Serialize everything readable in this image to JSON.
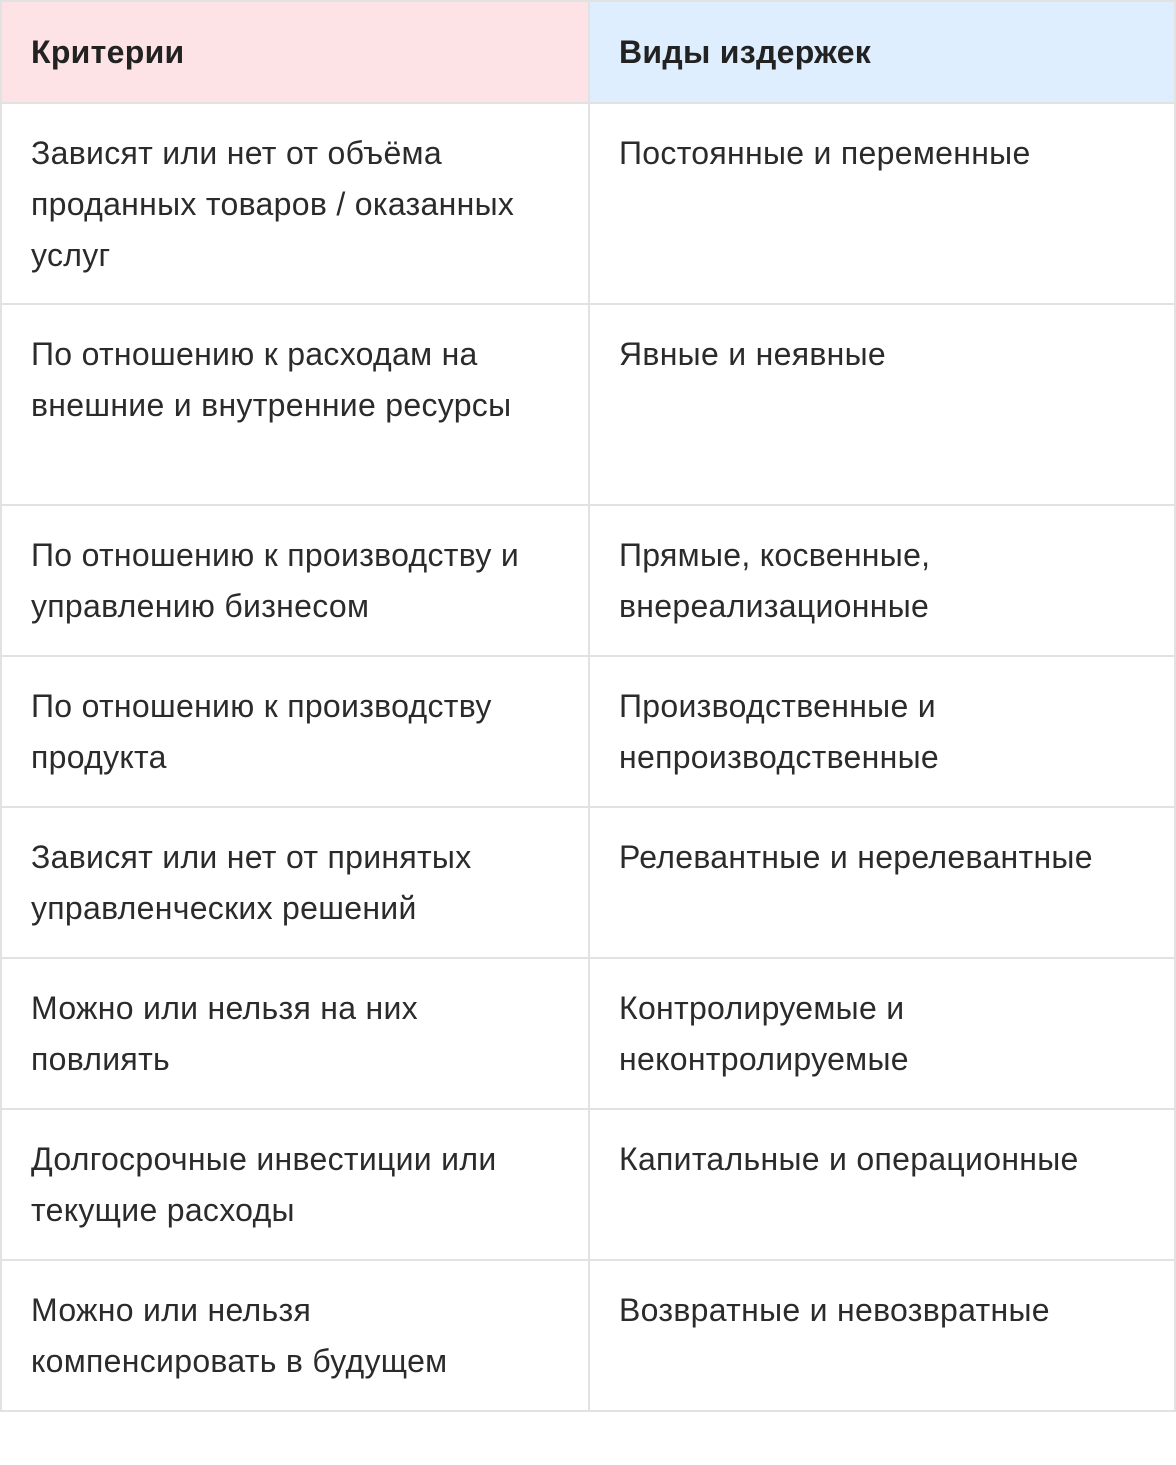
{
  "header": {
    "criteria": "Критерии",
    "cost_types": "Виды издержек"
  },
  "header_colors": {
    "criteria": "#fde3e5",
    "cost_types": "#deeefe"
  },
  "rows": [
    {
      "criterion": "Зависят или нет от объёма проданных товаров / оказанных услуг",
      "types": "Постоянные и переменные"
    },
    {
      "criterion": "По отношению к расходам на внешние и внутренние ресурсы",
      "types": "Явные и неявные"
    },
    {
      "criterion": "По отношению к производству и управлению бизнесом",
      "types": "Прямые, косвенные, внереализационные"
    },
    {
      "criterion": "По отношению к производству продукта",
      "types": "Производственные и непроизводственные"
    },
    {
      "criterion": "Зависят или нет от принятых управленческих решений",
      "types": "Релевантные и нерелевантные"
    },
    {
      "criterion": "Можно или нельзя на них повлиять",
      "types": "Контролируемые и неконтролируемые"
    },
    {
      "criterion": "Долгосрочные инвестиции или текущие расходы",
      "types": "Капитальные и операционные"
    },
    {
      "criterion": "Можно или нельзя компенсировать в будущем",
      "types": "Возвратные и невозвратные"
    }
  ]
}
